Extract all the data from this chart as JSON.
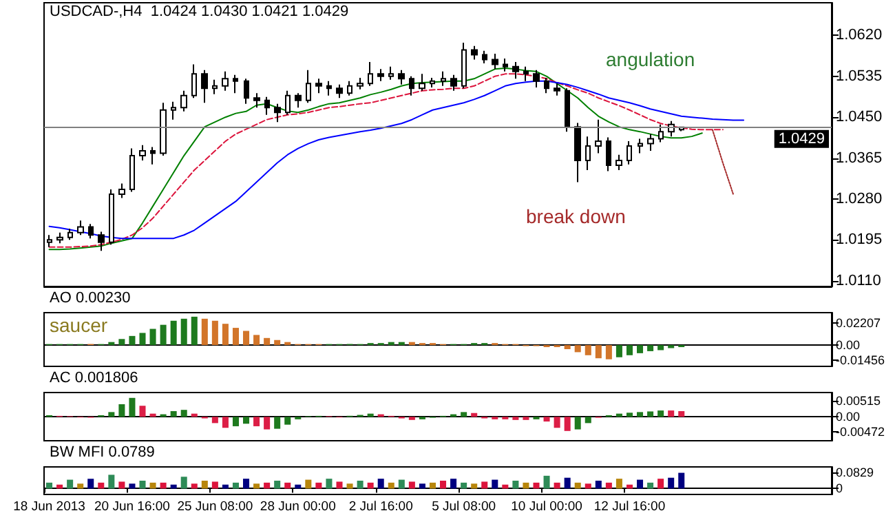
{
  "chart_data": [
    {
      "type": "candlestick",
      "title": "USDCAD-,H4  1.0424 1.0430 1.0421 1.0429",
      "color": "#000000",
      "categories": [
        null,
        null,
        null,
        null,
        null,
        null,
        null,
        null,
        null,
        null,
        null,
        null,
        null,
        null,
        null,
        null,
        null,
        null,
        null,
        null,
        null,
        null,
        null,
        null,
        null,
        null,
        null,
        null,
        null,
        null,
        null,
        null,
        null,
        null,
        null,
        null,
        null,
        null,
        null,
        null,
        null,
        null,
        null,
        null,
        null,
        null,
        null,
        null,
        null,
        null,
        null,
        null,
        null,
        null,
        null,
        null,
        null,
        null,
        null,
        null,
        null,
        null,
        null,
        null,
        null,
        null,
        null,
        null,
        null,
        null,
        null,
        null,
        null,
        null,
        null,
        null
      ],
      "ohlc": [
        [
          1.019,
          1.0205,
          1.018,
          1.0195
        ],
        [
          1.0195,
          1.021,
          1.0188,
          1.02
        ],
        [
          1.02,
          1.0218,
          1.0195,
          1.021
        ],
        [
          1.021,
          1.0235,
          1.0205,
          1.0222
        ],
        [
          1.0222,
          1.0228,
          1.0198,
          1.0205
        ],
        [
          1.0205,
          1.0212,
          1.0172,
          1.019
        ],
        [
          1.019,
          1.03,
          1.0185,
          1.029
        ],
        [
          1.029,
          1.0312,
          1.0282,
          1.03
        ],
        [
          1.03,
          1.0385,
          1.0295,
          1.037
        ],
        [
          1.037,
          1.0392,
          1.036,
          1.038
        ],
        [
          1.038,
          1.0388,
          1.0352,
          1.0375
        ],
        [
          1.0375,
          1.048,
          1.037,
          1.0465
        ],
        [
          1.0465,
          1.0482,
          1.0445,
          1.047
        ],
        [
          1.047,
          1.0505,
          1.0462,
          1.0495
        ],
        [
          1.0495,
          1.056,
          1.049,
          1.054
        ],
        [
          1.054,
          1.0548,
          1.048,
          1.051
        ],
        [
          1.051,
          1.0528,
          1.0498,
          1.0515
        ],
        [
          1.0515,
          1.0545,
          1.0505,
          1.053
        ],
        [
          1.053,
          1.0538,
          1.05,
          1.0525
        ],
        [
          1.0525,
          1.053,
          1.0478,
          1.049
        ],
        [
          1.049,
          1.05,
          1.047,
          1.0485
        ],
        [
          1.0485,
          1.0492,
          1.0455,
          1.047
        ],
        [
          1.047,
          1.0478,
          1.044,
          1.046
        ],
        [
          1.046,
          1.0505,
          1.0455,
          1.0495
        ],
        [
          1.0495,
          1.05,
          1.047,
          1.0485
        ],
        [
          1.0485,
          1.0548,
          1.048,
          1.052
        ],
        [
          1.052,
          1.053,
          1.05,
          1.0515
        ],
        [
          1.0515,
          1.0525,
          1.0495,
          1.051
        ],
        [
          1.051,
          1.0518,
          1.049,
          1.05
        ],
        [
          1.05,
          1.0525,
          1.0495,
          1.0515
        ],
        [
          1.0515,
          1.0532,
          1.0508,
          1.052
        ],
        [
          1.052,
          1.0565,
          1.0515,
          1.054
        ],
        [
          1.054,
          1.055,
          1.0525,
          1.0535
        ],
        [
          1.0535,
          1.0555,
          1.0528,
          1.054
        ],
        [
          1.054,
          1.0548,
          1.0518,
          1.053
        ],
        [
          1.053,
          1.0535,
          1.0495,
          1.051
        ],
        [
          1.051,
          1.054,
          1.0505,
          1.052
        ],
        [
          1.052,
          1.0532,
          1.0512,
          1.0525
        ],
        [
          1.0525,
          1.0545,
          1.0515,
          1.053
        ],
        [
          1.053,
          1.0538,
          1.0505,
          1.0515
        ],
        [
          1.0515,
          1.0605,
          1.051,
          1.059
        ],
        [
          1.059,
          1.0598,
          1.057,
          1.058
        ],
        [
          1.058,
          1.0588,
          1.0562,
          1.057
        ],
        [
          1.057,
          1.0582,
          1.055,
          1.056
        ],
        [
          1.056,
          1.0572,
          1.0545,
          1.0555
        ],
        [
          1.0555,
          1.0565,
          1.053,
          1.0545
        ],
        [
          1.0545,
          1.0555,
          1.0525,
          1.054
        ],
        [
          1.054,
          1.0548,
          1.0512,
          1.0525
        ],
        [
          1.0525,
          1.0532,
          1.05,
          1.051
        ],
        [
          1.051,
          1.052,
          1.0495,
          1.0505
        ],
        [
          1.0505,
          1.051,
          1.042,
          1.043
        ],
        [
          1.043,
          1.0438,
          1.0315,
          1.036
        ],
        [
          1.036,
          1.041,
          1.034,
          1.039
        ],
        [
          1.039,
          1.0445,
          1.0375,
          1.04
        ],
        [
          1.04,
          1.0408,
          1.0338,
          1.035
        ],
        [
          1.035,
          1.0372,
          1.034,
          1.036
        ],
        [
          1.036,
          1.04,
          1.0352,
          1.039
        ],
        [
          1.039,
          1.0405,
          1.0375,
          1.0395
        ],
        [
          1.0395,
          1.0415,
          1.038,
          1.0405
        ],
        [
          1.0405,
          1.0435,
          1.0398,
          1.042
        ],
        [
          1.042,
          1.0442,
          1.041,
          1.0435
        ],
        [
          1.0424,
          1.043,
          1.0421,
          1.0429
        ],
        null,
        null,
        null,
        null,
        null,
        null,
        null,
        null,
        null,
        null,
        null,
        null,
        null,
        null
      ],
      "series": [
        {
          "type": "line",
          "color": "#008000",
          "line_style": "solid",
          "values": [
            1.0175,
            1.0175,
            1.0176,
            1.0178,
            1.018,
            1.0182,
            1.0188,
            1.0193,
            1.0198,
            1.023,
            1.0265,
            1.03,
            1.0335,
            1.037,
            1.04,
            1.043,
            1.044,
            1.045,
            1.0458,
            1.0462,
            1.0475,
            1.0478,
            1.047,
            1.0463,
            1.046,
            1.0465,
            1.0472,
            1.0478,
            1.048,
            1.0485,
            1.049,
            1.0497,
            1.0502,
            1.0508,
            1.0515,
            1.052,
            1.0522,
            1.0523,
            1.0524,
            1.0525,
            1.0525,
            1.053,
            1.054,
            1.055,
            1.0552,
            1.055,
            1.0547,
            1.0545,
            1.0535,
            1.052,
            1.0505,
            1.049,
            1.047,
            1.0452,
            1.044,
            1.043,
            1.0424,
            1.042,
            1.0415,
            1.041,
            1.0407,
            1.0407,
            1.041,
            1.0417,
            null,
            null,
            null,
            null,
            null,
            null,
            null,
            null,
            null,
            null,
            null,
            null
          ]
        },
        {
          "type": "line",
          "color": "#dc143c",
          "line_style": "dashed",
          "values": [
            1.018,
            1.018,
            1.018,
            1.0181,
            1.0182,
            1.0185,
            1.019,
            1.0196,
            1.0205,
            1.022,
            1.024,
            1.0265,
            1.029,
            1.0315,
            1.034,
            1.036,
            1.038,
            1.04,
            1.0415,
            1.0425,
            1.0435,
            1.0445,
            1.045,
            1.0455,
            1.0457,
            1.046,
            1.0465,
            1.047,
            1.0472,
            1.0475,
            1.0478,
            1.048,
            1.0485,
            1.049,
            1.0495,
            1.05,
            1.0505,
            1.0507,
            1.0508,
            1.051,
            1.051,
            1.0515,
            1.0525,
            1.0535,
            1.054,
            1.054,
            1.0538,
            1.0535,
            1.053,
            1.0522,
            1.0515,
            1.0507,
            1.05,
            1.049,
            1.0482,
            1.0474,
            1.0465,
            1.0455,
            1.0445,
            1.0437,
            1.0432,
            1.0428,
            1.0425,
            1.0424,
            1.0424,
            1.0424,
            null,
            null,
            null,
            null,
            null,
            null,
            null,
            null,
            null,
            null
          ]
        },
        {
          "type": "line",
          "color": "#0000ff",
          "line_style": "solid",
          "values": [
            1.0223,
            1.022,
            1.0216,
            1.0212,
            1.0208,
            1.0203,
            1.02,
            1.0198,
            1.0198,
            1.0198,
            1.0198,
            1.0198,
            1.0198,
            1.0205,
            1.0215,
            1.023,
            1.0245,
            1.026,
            1.0275,
            1.0295,
            1.0315,
            1.0335,
            1.0355,
            1.0372,
            1.0385,
            1.0395,
            1.0403,
            1.0408,
            1.0412,
            1.0416,
            1.042,
            1.0423,
            1.0427,
            1.0432,
            1.0437,
            1.0445,
            1.0455,
            1.0465,
            1.047,
            1.0475,
            1.048,
            1.0487,
            1.0495,
            1.0505,
            1.0515,
            1.052,
            1.0523,
            1.0525,
            1.0525,
            1.0522,
            1.0518,
            1.0512,
            1.0505,
            1.0498,
            1.049,
            1.0485,
            1.048,
            1.0474,
            1.0467,
            1.0462,
            1.0457,
            1.0452,
            1.045,
            1.0448,
            1.0446,
            1.0445,
            1.0444,
            1.0444,
            null,
            null,
            null,
            null,
            null,
            null,
            null,
            null
          ]
        },
        {
          "type": "line",
          "color": "#a52a2a",
          "line_style": "dotted",
          "values": [
            null,
            null,
            null,
            null,
            null,
            null,
            null,
            null,
            null,
            null,
            null,
            null,
            null,
            null,
            null,
            null,
            null,
            null,
            null,
            null,
            null,
            null,
            null,
            null,
            null,
            null,
            null,
            null,
            null,
            null,
            null,
            null,
            null,
            null,
            null,
            null,
            null,
            null,
            null,
            null,
            null,
            null,
            null,
            null,
            null,
            null,
            null,
            null,
            null,
            null,
            null,
            null,
            null,
            null,
            null,
            null,
            null,
            null,
            null,
            null,
            null,
            null,
            null,
            null,
            1.0424,
            1.0355,
            1.029,
            null,
            null,
            null,
            null,
            null,
            null,
            null,
            null,
            null
          ]
        }
      ],
      "ylim": [
        1.0098,
        1.0688
      ],
      "yticks": [
        {
          "value": 1.011,
          "label": "1.0110"
        },
        {
          "value": 1.0195,
          "label": "1.0195"
        },
        {
          "value": 1.028,
          "label": "1.0280"
        },
        {
          "value": 1.0365,
          "label": "1.0365"
        },
        {
          "value": 1.045,
          "label": "1.0450"
        },
        {
          "value": 1.0535,
          "label": "1.0535"
        },
        {
          "value": 1.062,
          "label": "1.0620"
        }
      ],
      "ref_lines": [
        {
          "axis": "y",
          "value": 1.0429,
          "label": "1.0429",
          "color": "#808080"
        }
      ],
      "annotations": [
        "angulation",
        "break down"
      ],
      "tick_labels": "y"
    },
    {
      "type": "bar",
      "title": "AO 0.00230",
      "categories": [
        null,
        null,
        null,
        null,
        null,
        null,
        null,
        null,
        null,
        null,
        null,
        null,
        null,
        null,
        null,
        null,
        null,
        null,
        null,
        null,
        null,
        null,
        null,
        null,
        null,
        null,
        null,
        null,
        null,
        null,
        null,
        null,
        null,
        null,
        null,
        null,
        null,
        null,
        null,
        null,
        null,
        null,
        null,
        null,
        null,
        null,
        null,
        null,
        null,
        null,
        null,
        null,
        null,
        null,
        null,
        null,
        null,
        null,
        null,
        null,
        null,
        null,
        null,
        null,
        null,
        null,
        null,
        null,
        null,
        null,
        null,
        null,
        null,
        null,
        null,
        null
      ],
      "values": [
        0.001,
        0.001,
        0.001,
        0.001,
        0.001,
        0.001,
        0.003,
        0.006,
        0.009,
        0.012,
        0.016,
        0.02,
        0.024,
        0.026,
        0.028,
        0.026,
        0.024,
        0.021,
        0.017,
        0.014,
        0.01,
        0.007,
        0.005,
        0.003,
        0.001,
        0.001,
        0.001,
        0.001,
        0.001,
        0.001,
        0.001,
        0.002,
        0.002,
        0.003,
        0.003,
        0.003,
        0.002,
        0.002,
        0.001,
        0.001,
        0.001,
        0.002,
        0.002,
        0.002,
        0.001,
        0.001,
        -0.001,
        -0.001,
        -0.002,
        -0.002,
        -0.004,
        -0.007,
        -0.01,
        -0.013,
        -0.014,
        -0.012,
        -0.01,
        -0.008,
        -0.006,
        -0.005,
        -0.003,
        -0.002,
        null,
        null,
        null,
        null,
        null,
        null,
        null,
        null,
        null,
        null,
        null,
        null,
        null,
        null
      ],
      "colors": [
        "#1e7a1e",
        "#1e7a1e",
        "#1e7a1e",
        "#1e7a1e",
        "#d2752a",
        "#1e7a1e",
        "#1e7a1e",
        "#1e7a1e",
        "#1e7a1e",
        "#1e7a1e",
        "#1e7a1e",
        "#1e7a1e",
        "#1e7a1e",
        "#1e7a1e",
        "#1e7a1e",
        "#d2752a",
        "#d2752a",
        "#d2752a",
        "#d2752a",
        "#d2752a",
        "#d2752a",
        "#d2752a",
        "#d2752a",
        "#d2752a",
        "#d2752a",
        "#d2752a",
        "#d2752a",
        "#1e7a1e",
        "#1e7a1e",
        "#1e7a1e",
        "#1e7a1e",
        "#1e7a1e",
        "#1e7a1e",
        "#1e7a1e",
        "#1e7a1e",
        "#d2752a",
        "#d2752a",
        "#d2752a",
        "#d2752a",
        "#1e7a1e",
        "#1e7a1e",
        "#1e7a1e",
        "#1e7a1e",
        "#d2752a",
        "#d2752a",
        "#d2752a",
        "#d2752a",
        "#d2752a",
        "#d2752a",
        "#d2752a",
        "#d2752a",
        "#d2752a",
        "#d2752a",
        "#d2752a",
        "#d2752a",
        "#1e7a1e",
        "#1e7a1e",
        "#1e7a1e",
        "#1e7a1e",
        "#1e7a1e",
        "#1e7a1e",
        "#1e7a1e",
        null,
        null,
        null,
        null,
        null,
        null,
        null,
        null,
        null,
        null,
        null,
        null,
        null,
        null
      ],
      "ylim": [
        -0.021,
        0.032
      ],
      "yticks": [
        -0.01456,
        {
          "value": 0,
          "label": "0.00"
        },
        0.02207
      ],
      "annotations": [
        "saucer"
      ],
      "tick_labels": "y"
    },
    {
      "type": "bar",
      "title": "AC 0.001806",
      "categories": [
        null,
        null,
        null,
        null,
        null,
        null,
        null,
        null,
        null,
        null,
        null,
        null,
        null,
        null,
        null,
        null,
        null,
        null,
        null,
        null,
        null,
        null,
        null,
        null,
        null,
        null,
        null,
        null,
        null,
        null,
        null,
        null,
        null,
        null,
        null,
        null,
        null,
        null,
        null,
        null,
        null,
        null,
        null,
        null,
        null,
        null,
        null,
        null,
        null,
        null,
        null,
        null,
        null,
        null,
        null,
        null,
        null,
        null,
        null,
        null,
        null,
        null,
        null,
        null,
        null,
        null,
        null,
        null,
        null,
        null,
        null,
        null,
        null,
        null,
        null,
        null
      ],
      "values": [
        0.0005,
        0.0003,
        0.0002,
        -0.0002,
        -0.0003,
        0.0005,
        0.0015,
        0.004,
        0.006,
        0.0035,
        0.001,
        0.0008,
        0.0018,
        0.0022,
        0.001,
        -0.0005,
        -0.002,
        -0.0035,
        -0.003,
        -0.0022,
        -0.003,
        -0.004,
        -0.0038,
        -0.0025,
        -0.0008,
        0.0002,
        0.0003,
        0.0002,
        -0.0002,
        0.0003,
        0.0006,
        0.001,
        0.0008,
        0.0003,
        -0.0005,
        -0.001,
        -0.0008,
        -0.0003,
        0.0003,
        0.0008,
        0.0015,
        0.0012,
        -0.0005,
        -0.0008,
        -0.0008,
        -0.001,
        -0.001,
        -0.0008,
        -0.0015,
        -0.0035,
        -0.0045,
        -0.004,
        -0.002,
        -0.0003,
        0.0005,
        0.001,
        0.0013,
        0.0015,
        0.0017,
        0.002,
        0.002,
        0.0018,
        null,
        null,
        null,
        null,
        null,
        null,
        null,
        null,
        null,
        null,
        null,
        null,
        null,
        null
      ],
      "colors": [
        "#1e7a1e",
        "#dc1e46",
        "#dc1e46",
        "#dc1e46",
        "#dc1e46",
        "#1e7a1e",
        "#1e7a1e",
        "#1e7a1e",
        "#1e7a1e",
        "#dc1e46",
        "#dc1e46",
        "#1e7a1e",
        "#1e7a1e",
        "#1e7a1e",
        "#dc1e46",
        "#dc1e46",
        "#dc1e46",
        "#dc1e46",
        "#1e7a1e",
        "#1e7a1e",
        "#dc1e46",
        "#dc1e46",
        "#1e7a1e",
        "#1e7a1e",
        "#1e7a1e",
        "#1e7a1e",
        "#1e7a1e",
        "#dc1e46",
        "#dc1e46",
        "#1e7a1e",
        "#1e7a1e",
        "#1e7a1e",
        "#dc1e46",
        "#dc1e46",
        "#dc1e46",
        "#dc1e46",
        "#1e7a1e",
        "#1e7a1e",
        "#1e7a1e",
        "#1e7a1e",
        "#1e7a1e",
        "#dc1e46",
        "#dc1e46",
        "#dc1e46",
        "#dc1e46",
        "#dc1e46",
        "#dc1e46",
        "#1e7a1e",
        "#dc1e46",
        "#dc1e46",
        "#dc1e46",
        "#1e7a1e",
        "#1e7a1e",
        "#dc1e46",
        "#1e7a1e",
        "#1e7a1e",
        "#1e7a1e",
        "#1e7a1e",
        "#1e7a1e",
        "#1e7a1e",
        "#dc1e46",
        "#dc1e46",
        null,
        null,
        null,
        null,
        null,
        null,
        null,
        null,
        null,
        null,
        null,
        null,
        null,
        null
      ],
      "ylim": [
        -0.0076,
        0.0077
      ],
      "yticks": [
        -0.00472,
        {
          "value": 0,
          "label": "0.00"
        },
        0.00515
      ],
      "tick_labels": "y"
    },
    {
      "type": "bar",
      "title": "BW MFI 0.0789",
      "categories": [
        "18 Jun 2013",
        null,
        null,
        null,
        null,
        null,
        null,
        null,
        "20 Jun 16:00",
        null,
        null,
        null,
        null,
        null,
        null,
        null,
        "25 Jun 08:00",
        null,
        null,
        null,
        null,
        null,
        null,
        null,
        "28 Jun 00:00",
        null,
        null,
        null,
        null,
        null,
        null,
        null,
        "2 Jul 16:00",
        null,
        null,
        null,
        null,
        null,
        null,
        null,
        "5 Jul 08:00",
        null,
        null,
        null,
        null,
        null,
        null,
        null,
        "10 Jul 00:00",
        null,
        null,
        null,
        null,
        null,
        null,
        null,
        "12 Jul 16:00",
        null,
        null,
        null,
        null,
        null,
        null,
        null,
        null,
        null,
        null,
        null,
        null,
        null,
        null,
        null,
        null,
        null,
        null,
        null
      ],
      "values": [
        0.03,
        0.02,
        0.045,
        0.025,
        0.05,
        0.03,
        0.07,
        0.035,
        0.025,
        0.04,
        0.03,
        0.03,
        0.02,
        0.06,
        0.025,
        0.04,
        0.035,
        0.02,
        0.03,
        0.05,
        0.025,
        0.03,
        0.04,
        0.03,
        0.02,
        0.045,
        0.03,
        0.05,
        0.035,
        0.025,
        0.04,
        0.03,
        0.05,
        0.03,
        0.045,
        0.035,
        0.025,
        0.03,
        0.04,
        0.05,
        0.03,
        0.025,
        0.035,
        0.045,
        0.02,
        0.04,
        0.03,
        0.03,
        0.065,
        0.03,
        0.055,
        0.03,
        0.025,
        0.04,
        0.03,
        0.05,
        0.02,
        0.045,
        0.03,
        0.05,
        0.055,
        0.08,
        null,
        null,
        null,
        null,
        null,
        null,
        null,
        null,
        null,
        null,
        null,
        null,
        null,
        null
      ],
      "colors": [
        "#2e8b57",
        "#dc143c",
        "#2e8b57",
        "#b8860b",
        "#000080",
        "#dc143c",
        "#2e8b57",
        "#dc143c",
        "#000080",
        "#2e8b57",
        "#b8860b",
        "#dc143c",
        "#000080",
        "#2e8b57",
        "#dc143c",
        "#b8860b",
        "#dc143c",
        "#000080",
        "#2e8b57",
        "#000080",
        "#b8860b",
        "#dc143c",
        "#2e8b57",
        "#dc143c",
        "#000080",
        "#b8860b",
        "#dc143c",
        "#2e8b57",
        "#dc143c",
        "#b8860b",
        "#2e8b57",
        "#dc143c",
        "#000080",
        "#b8860b",
        "#2e8b57",
        "#dc143c",
        "#000080",
        "#b8860b",
        "#dc143c",
        "#000080",
        "#2e8b57",
        "#b8860b",
        "#dc143c",
        "#000080",
        "#dc143c",
        "#2e8b57",
        "#b8860b",
        "#dc143c",
        "#2e8b57",
        "#dc143c",
        "#000080",
        "#b8860b",
        "#dc143c",
        "#000080",
        "#dc143c",
        "#b8860b",
        "#dc143c",
        "#000080",
        "#2e8b57",
        "#dc143c",
        "#000080",
        "#000080",
        null,
        null,
        null,
        null,
        null,
        null,
        null,
        null,
        null,
        null,
        null,
        null,
        null,
        null
      ],
      "ylim": [
        -0.03,
        0.11
      ],
      "yticks": [
        {
          "value": 0,
          "label": "0"
        },
        0.0829
      ]
    }
  ]
}
